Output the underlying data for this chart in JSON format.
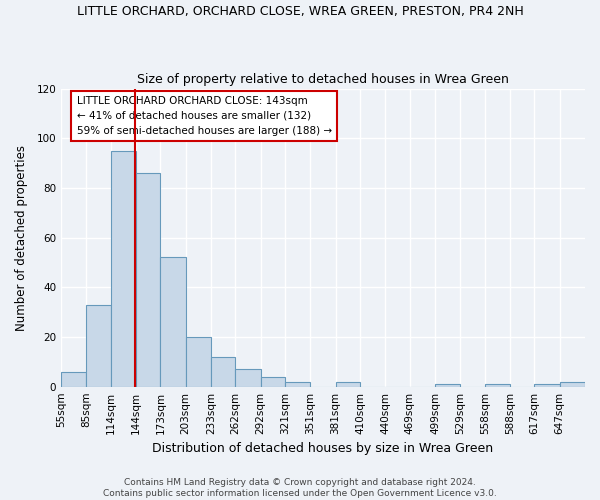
{
  "title": "LITTLE ORCHARD, ORCHARD CLOSE, WREA GREEN, PRESTON, PR4 2NH",
  "subtitle": "Size of property relative to detached houses in Wrea Green",
  "xlabel": "Distribution of detached houses by size in Wrea Green",
  "ylabel": "Number of detached properties",
  "bin_labels": [
    "55sqm",
    "85sqm",
    "114sqm",
    "144sqm",
    "173sqm",
    "203sqm",
    "233sqm",
    "262sqm",
    "292sqm",
    "321sqm",
    "351sqm",
    "381sqm",
    "410sqm",
    "440sqm",
    "469sqm",
    "499sqm",
    "529sqm",
    "558sqm",
    "588sqm",
    "617sqm",
    "647sqm"
  ],
  "bin_edges": [
    55,
    85,
    114,
    144,
    173,
    203,
    233,
    262,
    292,
    321,
    351,
    381,
    410,
    440,
    469,
    499,
    529,
    558,
    588,
    617,
    647
  ],
  "bar_heights": [
    6,
    33,
    95,
    86,
    52,
    20,
    12,
    7,
    4,
    2,
    0,
    2,
    0,
    0,
    0,
    1,
    0,
    1,
    0,
    1,
    2
  ],
  "bar_color": "#c8d8e8",
  "bar_edgecolor": "#6699bb",
  "vline_x": 143,
  "vline_color": "#cc0000",
  "ylim": [
    0,
    120
  ],
  "yticks": [
    0,
    20,
    40,
    60,
    80,
    100,
    120
  ],
  "annotation_title": "LITTLE ORCHARD ORCHARD CLOSE: 143sqm",
  "annotation_line1": "← 41% of detached houses are smaller (132)",
  "annotation_line2": "59% of semi-detached houses are larger (188) →",
  "annotation_box_color": "#ffffff",
  "annotation_box_edgecolor": "#cc0000",
  "footer1": "Contains HM Land Registry data © Crown copyright and database right 2024.",
  "footer2": "Contains public sector information licensed under the Open Government Licence v3.0.",
  "background_color": "#eef2f7",
  "grid_color": "#ffffff",
  "title_fontsize": 9,
  "subtitle_fontsize": 9,
  "xlabel_fontsize": 9,
  "ylabel_fontsize": 8.5,
  "tick_fontsize": 7.5,
  "footer_fontsize": 6.5
}
